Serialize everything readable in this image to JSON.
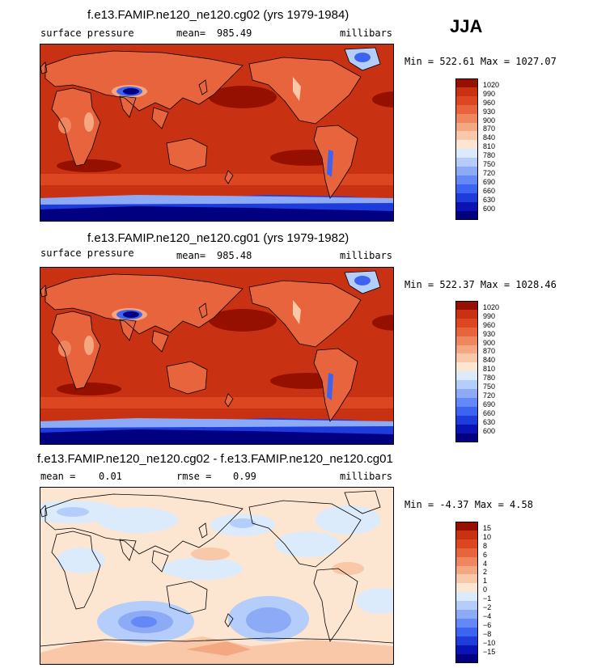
{
  "season": "JJA",
  "palettes": {
    "warm": [
      "#000080",
      "#0a14b4",
      "#1e3cdc",
      "#3c64f0",
      "#6488f5",
      "#8caaf5",
      "#b4cdfa",
      "#dcebfc",
      "#fce6d2",
      "#f8c8a8",
      "#f4a882",
      "#f08660",
      "#e8643c",
      "#dc4620",
      "#c83212",
      "#961000"
    ],
    "diff": [
      "#000080",
      "#0a14b4",
      "#1e3cdc",
      "#3c64f0",
      "#6488f5",
      "#8caaf5",
      "#b4cdfa",
      "#dcebfc",
      "#fce6d2",
      "#f8c8a8",
      "#f4a882",
      "#f08660",
      "#e8643c",
      "#dc4620",
      "#c83212",
      "#961000"
    ]
  },
  "panels": [
    {
      "title": "f.e13.FAMIP.ne120_ne120.cg02 (yrs 1979-1984)",
      "left_label": "surface pressure",
      "stat_label": "mean=",
      "stat_value": "985.49",
      "units": "millibars",
      "minmax": "Min = 522.61 Max = 1027.07",
      "kind": "abs"
    },
    {
      "title": "f.e13.FAMIP.ne120_ne120.cg01 (yrs 1979-1982)",
      "left_label": "surface pressure",
      "stat_label": "mean=",
      "stat_value": "985.48",
      "units": "millibars",
      "minmax": "Min = 522.37 Max = 1028.46",
      "kind": "abs"
    },
    {
      "title": "f.e13.FAMIP.ne120_ne120.cg02 - f.e13.FAMIP.ne120_ne120.cg01",
      "left_label": "mean =",
      "left_value": "0.01",
      "stat_label": "rmse =",
      "stat_value": "0.99",
      "units": "millibars",
      "minmax": "Min =  -4.37 Max =    4.58",
      "kind": "diff"
    }
  ],
  "chart_data": [
    {
      "type": "heatmap",
      "title": "f.e13.FAMIP.ne120_ne120.cg02 (yrs 1979-1984)",
      "variable": "surface pressure",
      "units": "millibars",
      "mean": 985.49,
      "min": 522.61,
      "max": 1027.07,
      "colorbar_levels": [
        1020,
        990,
        960,
        930,
        900,
        870,
        840,
        810,
        780,
        750,
        720,
        690,
        660,
        630,
        600
      ]
    },
    {
      "type": "heatmap",
      "title": "f.e13.FAMIP.ne120_ne120.cg01 (yrs 1979-1982)",
      "variable": "surface pressure",
      "units": "millibars",
      "mean": 985.48,
      "min": 522.37,
      "max": 1028.46,
      "colorbar_levels": [
        1020,
        990,
        960,
        930,
        900,
        870,
        840,
        810,
        780,
        750,
        720,
        690,
        660,
        630,
        600
      ]
    },
    {
      "type": "heatmap",
      "title": "f.e13.FAMIP.ne120_ne120.cg02 - f.e13.FAMIP.ne120_ne120.cg01",
      "units": "millibars",
      "mean": 0.01,
      "rmse": 0.99,
      "min": -4.37,
      "max": 4.58,
      "colorbar_levels": [
        15,
        10,
        8,
        6,
        4,
        2,
        1,
        0,
        -1,
        -2,
        -4,
        -6,
        -8,
        -10,
        -15
      ]
    }
  ]
}
